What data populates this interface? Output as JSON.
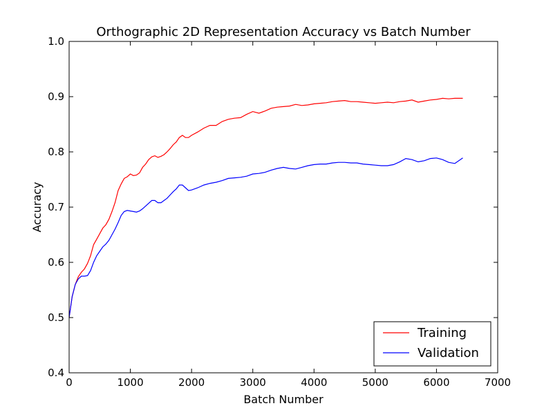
{
  "chart_data": {
    "type": "line",
    "title": "Orthographic 2D Representation Accuracy vs Batch Number",
    "xlabel": "Batch Number",
    "ylabel": "Accuracy",
    "xlim": [
      0,
      7000
    ],
    "ylim": [
      0.4,
      1.0
    ],
    "xticks": [
      "0",
      "1000",
      "2000",
      "3000",
      "4000",
      "5000",
      "6000",
      "7000"
    ],
    "yticks": [
      "0.4",
      "0.5",
      "0.6",
      "0.7",
      "0.8",
      "0.9",
      "1.0"
    ],
    "grid": false,
    "legend_position": "lower-right",
    "series": [
      {
        "name": "Training",
        "color": "#ff0000",
        "x": [
          0,
          50,
          100,
          150,
          200,
          250,
          300,
          350,
          400,
          450,
          500,
          550,
          600,
          650,
          700,
          750,
          800,
          850,
          900,
          950,
          1000,
          1050,
          1100,
          1150,
          1200,
          1250,
          1300,
          1350,
          1400,
          1450,
          1500,
          1550,
          1600,
          1650,
          1700,
          1750,
          1800,
          1850,
          1900,
          1950,
          2000,
          2100,
          2200,
          2300,
          2400,
          2500,
          2600,
          2700,
          2800,
          2900,
          3000,
          3100,
          3200,
          3300,
          3400,
          3500,
          3600,
          3700,
          3800,
          3900,
          4000,
          4100,
          4200,
          4300,
          4400,
          4500,
          4600,
          4700,
          4800,
          4900,
          5000,
          5100,
          5200,
          5300,
          5400,
          5500,
          5600,
          5700,
          5800,
          5900,
          6000,
          6100,
          6200,
          6300,
          6430
        ],
        "values": [
          0.5,
          0.538,
          0.56,
          0.574,
          0.582,
          0.588,
          0.598,
          0.612,
          0.632,
          0.642,
          0.652,
          0.662,
          0.668,
          0.678,
          0.692,
          0.708,
          0.73,
          0.742,
          0.752,
          0.755,
          0.76,
          0.757,
          0.758,
          0.762,
          0.772,
          0.778,
          0.786,
          0.791,
          0.793,
          0.79,
          0.792,
          0.795,
          0.8,
          0.806,
          0.813,
          0.818,
          0.826,
          0.83,
          0.826,
          0.826,
          0.83,
          0.836,
          0.843,
          0.848,
          0.848,
          0.855,
          0.859,
          0.861,
          0.862,
          0.868,
          0.873,
          0.87,
          0.874,
          0.879,
          0.881,
          0.882,
          0.883,
          0.886,
          0.884,
          0.885,
          0.887,
          0.888,
          0.889,
          0.891,
          0.892,
          0.893,
          0.891,
          0.891,
          0.89,
          0.889,
          0.888,
          0.889,
          0.89,
          0.889,
          0.891,
          0.892,
          0.894,
          0.89,
          0.892,
          0.894,
          0.895,
          0.897,
          0.896,
          0.897,
          0.897
        ]
      },
      {
        "name": "Validation",
        "color": "#0000ff",
        "x": [
          0,
          50,
          100,
          150,
          200,
          250,
          300,
          350,
          400,
          450,
          500,
          550,
          600,
          650,
          700,
          750,
          800,
          850,
          900,
          950,
          1000,
          1050,
          1100,
          1150,
          1200,
          1250,
          1300,
          1350,
          1400,
          1450,
          1500,
          1550,
          1600,
          1650,
          1700,
          1750,
          1800,
          1850,
          1900,
          1950,
          2000,
          2100,
          2200,
          2300,
          2400,
          2500,
          2600,
          2700,
          2800,
          2900,
          3000,
          3100,
          3200,
          3300,
          3400,
          3500,
          3600,
          3700,
          3800,
          3900,
          4000,
          4100,
          4200,
          4300,
          4400,
          4500,
          4600,
          4700,
          4800,
          4900,
          5000,
          5100,
          5200,
          5300,
          5400,
          5500,
          5600,
          5700,
          5800,
          5900,
          6000,
          6100,
          6200,
          6300,
          6430
        ],
        "values": [
          0.5,
          0.538,
          0.56,
          0.57,
          0.575,
          0.575,
          0.576,
          0.585,
          0.6,
          0.612,
          0.62,
          0.628,
          0.633,
          0.64,
          0.65,
          0.66,
          0.672,
          0.685,
          0.692,
          0.694,
          0.693,
          0.692,
          0.691,
          0.693,
          0.697,
          0.702,
          0.707,
          0.712,
          0.712,
          0.708,
          0.708,
          0.712,
          0.716,
          0.722,
          0.728,
          0.733,
          0.74,
          0.74,
          0.735,
          0.73,
          0.731,
          0.735,
          0.74,
          0.743,
          0.745,
          0.748,
          0.752,
          0.753,
          0.754,
          0.756,
          0.76,
          0.761,
          0.763,
          0.767,
          0.77,
          0.772,
          0.77,
          0.769,
          0.772,
          0.775,
          0.777,
          0.778,
          0.778,
          0.78,
          0.781,
          0.781,
          0.78,
          0.78,
          0.778,
          0.777,
          0.776,
          0.775,
          0.775,
          0.777,
          0.782,
          0.788,
          0.786,
          0.782,
          0.784,
          0.788,
          0.789,
          0.786,
          0.781,
          0.779,
          0.789
        ]
      }
    ]
  }
}
